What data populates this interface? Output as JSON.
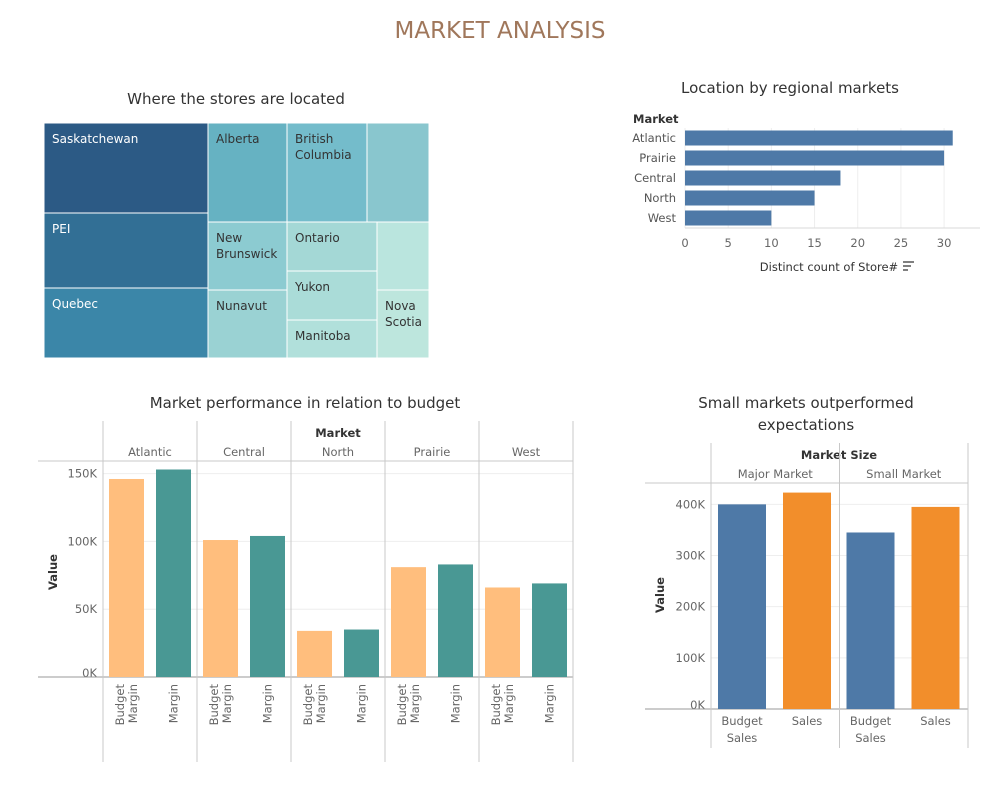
{
  "dashboard": {
    "title": "MARKET ANALYSIS"
  },
  "colors": {
    "title": "#a0775b",
    "treemap_dark": "#2c5a85",
    "bar_blue": "#4e79a7",
    "budget_margin": "#ffbe7d",
    "margin": "#499894",
    "sales": "#f28e2b",
    "text_dark": "#333333",
    "text_light": "#666666",
    "grid": "#eeeeee",
    "divider": "#c8c8c8"
  },
  "chart_data": [
    {
      "id": "treemap",
      "type": "treemap",
      "title": "Where the stores are located",
      "items": [
        {
          "label": "Saskatchewan",
          "color": "#2c5a85"
        },
        {
          "label": "PEI",
          "color": "#326f95"
        },
        {
          "label": "Quebec",
          "color": "#3b86a8"
        },
        {
          "label": "Alberta",
          "color": "#66b2c2"
        },
        {
          "label": "British Columbia",
          "color": "#74bccb"
        },
        {
          "label": "",
          "color": "#89c6ce"
        },
        {
          "label": "New Brunswick",
          "color": "#8ccbd1"
        },
        {
          "label": "Nunavut",
          "color": "#9ad2d3"
        },
        {
          "label": "Ontario",
          "color": "#a4d8d6"
        },
        {
          "label": "Yukon",
          "color": "#aadcd8"
        },
        {
          "label": "Manitoba",
          "color": "#b1e0db"
        },
        {
          "label": "",
          "color": "#bae5de"
        },
        {
          "label": "Nova Scotia",
          "color": "#bde6dd"
        }
      ]
    },
    {
      "id": "regional",
      "type": "bar",
      "orientation": "horizontal",
      "title": "Location by regional markets",
      "row_header": "Market",
      "categories": [
        "Atlantic",
        "Prairie",
        "Central",
        "North",
        "West"
      ],
      "values": [
        31,
        30,
        18,
        15,
        10
      ],
      "xlabel": "Distinct count of Store#",
      "xlim": [
        0,
        33
      ],
      "xticks": [
        0,
        5,
        10,
        15,
        20,
        25,
        30
      ],
      "grid": true
    },
    {
      "id": "performance",
      "type": "bar",
      "title": "Market performance in relation to budget",
      "column_header": "Market",
      "ylabel": "Value",
      "ylim": [
        0,
        160000
      ],
      "yticks": [
        0,
        50000,
        100000,
        150000
      ],
      "ytick_labels": [
        "0K",
        "50K",
        "100K",
        "150K"
      ],
      "categories": [
        "Atlantic",
        "Central",
        "North",
        "Prairie",
        "West"
      ],
      "measures": [
        "Budget Margin",
        "Margin"
      ],
      "series": [
        {
          "name": "Budget Margin",
          "values": [
            146000,
            101000,
            34000,
            81000,
            66000
          ]
        },
        {
          "name": "Margin",
          "values": [
            153000,
            104000,
            35000,
            83000,
            69000
          ]
        }
      ],
      "grid": true
    },
    {
      "id": "size",
      "type": "bar",
      "title": "Small markets outperformed expectations",
      "column_header": "Market Size",
      "ylabel": "Value",
      "ylim": [
        0,
        430000
      ],
      "yticks": [
        0,
        100000,
        200000,
        300000,
        400000
      ],
      "ytick_labels": [
        "0K",
        "100K",
        "200K",
        "300K",
        "400K"
      ],
      "categories": [
        "Major Market",
        "Small Market"
      ],
      "measures": [
        "Budget Sales",
        "Sales"
      ],
      "series": [
        {
          "name": "Budget Sales",
          "values": [
            400000,
            345000
          ]
        },
        {
          "name": "Sales",
          "values": [
            423000,
            395000
          ]
        }
      ],
      "grid": true
    }
  ]
}
